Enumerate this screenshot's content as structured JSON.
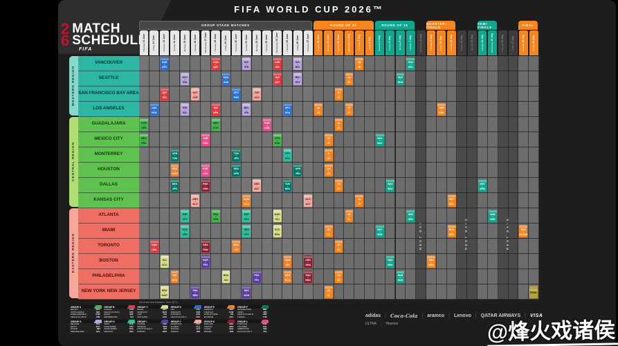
{
  "title": "FIFA WORLD CUP 2026™",
  "logo": {
    "num_top": "2",
    "num_bottom": "6",
    "line1": "MATCH",
    "line2": "SCHEDULE",
    "fifa": "FIFA"
  },
  "note": "All times are Eastern Time (ET)",
  "watermark": "@烽火戏诸侯",
  "colors": {
    "phase_r32": "#f5861f",
    "phase_r16": "#11a78e",
    "phase_qf": "#f5861f",
    "phase_sf": "#11a78e",
    "phase_final_band": "#f5861f",
    "phase_final_block": "#b5a03a",
    "tab_group": "#e6e6e6",
    "tab_rest": "#3d3d3d",
    "col_default": "#757575",
    "col_knockout": "#6c6c6c",
    "col_rest": "#4a4a4a",
    "region_west": "#2eb6a5",
    "region_west_strip": "#86d9cb",
    "region_central": "#5fc14f",
    "region_central_strip": "#aede74",
    "region_east": "#ef6e63",
    "region_east_strip": "#f5a79c",
    "groups": {
      "A": {
        "bg": "#44b24e",
        "fg": "#0d2d10"
      },
      "B": {
        "bg": "#e03a40",
        "fg": "#ffffff"
      },
      "C": {
        "bg": "#d9dd8d",
        "fg": "#32330f"
      },
      "D": {
        "bg": "#2a6fd4",
        "fg": "#ffffff"
      },
      "E": {
        "bg": "#ef8128",
        "fg": "#ffffff"
      },
      "F": {
        "bg": "#007a68",
        "fg": "#ffffff"
      },
      "G": {
        "bg": "#b7a4dc",
        "fg": "#251543"
      },
      "H": {
        "bg": "#2fc0a0",
        "fg": "#062e24"
      },
      "I": {
        "bg": "#5a3da0",
        "fg": "#ffffff"
      },
      "J": {
        "bg": "#f2a8a0",
        "fg": "#471410"
      },
      "K": {
        "bg": "#8c2030",
        "fg": "#ffffff"
      },
      "L": {
        "bg": "#e84a8a",
        "fg": "#ffffff"
      }
    }
  },
  "phases": [
    {
      "key": "group",
      "label": "GROUP STAGE MATCHES",
      "from": 0,
      "to": 16
    },
    {
      "key": "r32",
      "label": "ROUND OF 32",
      "from": 17,
      "to": 22
    },
    {
      "key": "r16",
      "label": "ROUND OF 16",
      "from": 23,
      "to": 26
    },
    {
      "key": "qf",
      "label": "QUARTER-FINALS",
      "from": 28,
      "to": 30
    },
    {
      "key": "sf",
      "label": "SEMI-FINALS",
      "from": 33,
      "to": 34
    },
    {
      "key": "final",
      "label": "FINAL",
      "from": 37,
      "to": 38
    }
  ],
  "rest_labels": [
    {
      "cols": [
        27
      ],
      "label": "REST DAY"
    },
    {
      "cols": [
        31,
        32
      ],
      "label": "REST DAYS"
    },
    {
      "cols": [
        35,
        36
      ],
      "label": "REST DAYS"
    }
  ],
  "dates": [
    {
      "day": "Thursday",
      "date": "11 June"
    },
    {
      "day": "Friday",
      "date": "12 June"
    },
    {
      "day": "Saturday",
      "date": "13 June"
    },
    {
      "day": "Sunday",
      "date": "14 June"
    },
    {
      "day": "Monday",
      "date": "15 June"
    },
    {
      "day": "Tuesday",
      "date": "16 June"
    },
    {
      "day": "Wednesday",
      "date": "17 June"
    },
    {
      "day": "Thursday",
      "date": "18 June"
    },
    {
      "day": "Friday",
      "date": "19 June"
    },
    {
      "day": "Saturday",
      "date": "20 June"
    },
    {
      "day": "Sunday",
      "date": "21 June"
    },
    {
      "day": "Monday",
      "date": "22 June"
    },
    {
      "day": "Tuesday",
      "date": "23 June"
    },
    {
      "day": "Wednesday",
      "date": "24 June"
    },
    {
      "day": "Thursday",
      "date": "25 June"
    },
    {
      "day": "Friday",
      "date": "26 June"
    },
    {
      "day": "Saturday",
      "date": "27 June"
    },
    {
      "day": "Sunday",
      "date": "28 June"
    },
    {
      "day": "Monday",
      "date": "29 June"
    },
    {
      "day": "Tuesday",
      "date": "30 June"
    },
    {
      "day": "Wednesday",
      "date": "1 July"
    },
    {
      "day": "Thursday",
      "date": "2 July"
    },
    {
      "day": "Friday",
      "date": "3 July"
    },
    {
      "day": "Saturday",
      "date": "4 July"
    },
    {
      "day": "Sunday",
      "date": "5 July"
    },
    {
      "day": "Monday",
      "date": "6 July"
    },
    {
      "day": "Tuesday",
      "date": "7 July"
    },
    {
      "day": "Wednesday",
      "date": "8 July"
    },
    {
      "day": "Thursday",
      "date": "9 July"
    },
    {
      "day": "Friday",
      "date": "10 July"
    },
    {
      "day": "Saturday",
      "date": "11 July"
    },
    {
      "day": "Sunday",
      "date": "12 July"
    },
    {
      "day": "Monday",
      "date": "13 July"
    },
    {
      "day": "Tuesday",
      "date": "14 July"
    },
    {
      "day": "Wednesday",
      "date": "15 July"
    },
    {
      "day": "Thursday",
      "date": "16 July"
    },
    {
      "day": "Friday",
      "date": "17 July"
    },
    {
      "day": "Saturday",
      "date": "18 July"
    },
    {
      "day": "Sunday",
      "date": "19 July"
    }
  ],
  "regions": [
    {
      "label": "WESTERN REGION",
      "key": "west",
      "cities": [
        "VANCOUVER",
        "SEATTLE",
        "SAN FRANCISCO BAY AREA",
        "LOS ANGELES"
      ]
    },
    {
      "label": "CENTRAL REGION",
      "key": "central",
      "cities": [
        "GUADALAJARA",
        "MEXICO CITY",
        "MONTERREY",
        "HOUSTON",
        "DALLAS",
        "KANSAS CITY"
      ]
    },
    {
      "label": "EASTERN REGION",
      "key": "east",
      "cities": [
        "ATLANTA",
        "MIAMI",
        "TORONTO",
        "BOSTON",
        "PHILADELPHIA",
        "NEW YORK NEW JERSEY"
      ]
    }
  ],
  "matches": [
    {
      "r": 0,
      "c": 2,
      "g": "D",
      "t1": "AUS",
      "t2": "UPC"
    },
    {
      "r": 0,
      "c": 7,
      "g": "B",
      "t1": "CAN",
      "t2": "QAT"
    },
    {
      "r": 0,
      "c": 10,
      "g": "G",
      "t1": "NZL",
      "t2": "IRN"
    },
    {
      "r": 0,
      "c": 13,
      "g": "B",
      "t1": "CAN",
      "t2": "SUI"
    },
    {
      "r": 0,
      "c": 15,
      "g": "G",
      "t1": "NZL",
      "t2": "BEL"
    },
    {
      "r": 0,
      "c": 21,
      "g": "r32",
      "t1": "1B",
      "t2": "2E"
    },
    {
      "r": 0,
      "c": 26,
      "g": "r16",
      "t1": "W49",
      "t2": "W51"
    },
    {
      "r": 1,
      "c": 4,
      "g": "G",
      "t1": "EGY",
      "t2": "IRN"
    },
    {
      "r": 1,
      "c": 8,
      "g": "D",
      "t1": "USA",
      "t2": "AUS"
    },
    {
      "r": 1,
      "c": 13,
      "g": "B",
      "t1": "SUI",
      "t2": "QAT"
    },
    {
      "r": 1,
      "c": 15,
      "g": "G",
      "t1": "BEL",
      "t2": "EGY"
    },
    {
      "r": 1,
      "c": 20,
      "g": "r32",
      "t1": "1D",
      "t2": "2C"
    },
    {
      "r": 1,
      "c": 25,
      "g": "r16",
      "t1": "W47",
      "t2": "W48"
    },
    {
      "r": 2,
      "c": 2,
      "g": "B",
      "t1": "QAT",
      "t2": "SUI"
    },
    {
      "r": 2,
      "c": 5,
      "g": "J",
      "t1": "AUT",
      "t2": "JOR"
    },
    {
      "r": 2,
      "c": 9,
      "g": "D",
      "t1": "UPC",
      "t2": "PAR"
    },
    {
      "r": 2,
      "c": 11,
      "g": "J",
      "t1": "JOR",
      "t2": "ALG"
    },
    {
      "r": 2,
      "c": 19,
      "g": "r32",
      "t1": "1C",
      "t2": "2F"
    },
    {
      "r": 3,
      "c": 1,
      "g": "D",
      "t1": "USA",
      "t2": "PAR"
    },
    {
      "r": 3,
      "c": 4,
      "g": "G",
      "t1": "IRN",
      "t2": "NZL"
    },
    {
      "r": 3,
      "c": 7,
      "g": "B",
      "t1": "SUI",
      "t2": "UPA"
    },
    {
      "r": 3,
      "c": 10,
      "g": "G",
      "t1": "BEL",
      "t2": "IRN"
    },
    {
      "r": 3,
      "c": 14,
      "g": "D",
      "t1": "UPC",
      "t2": "USA"
    },
    {
      "r": 3,
      "c": 17,
      "g": "r32",
      "t1": "1A",
      "t2": "2B"
    },
    {
      "r": 3,
      "c": 20,
      "g": "r32",
      "t1": "1F",
      "t2": "2E"
    },
    {
      "r": 3,
      "c": 29,
      "g": "qf",
      "t1": "W55",
      "t2": "W56"
    },
    {
      "r": 4,
      "c": 0,
      "g": "A",
      "t1": "KOR",
      "t2": "UPD"
    },
    {
      "r": 4,
      "c": 7,
      "g": "A",
      "t1": "MEX",
      "t2": "KOR"
    },
    {
      "r": 4,
      "c": 12,
      "g": "L",
      "t1": "POR",
      "t2": "UZB"
    },
    {
      "r": 4,
      "c": 19,
      "g": "r32",
      "t1": "1L",
      "t2": "2K"
    },
    {
      "r": 5,
      "c": 0,
      "g": "A",
      "t1": "MEX",
      "t2": "RSA"
    },
    {
      "r": 5,
      "c": 6,
      "g": "L",
      "t1": "UZB",
      "t2": "COL"
    },
    {
      "r": 5,
      "c": 13,
      "g": "A",
      "t1": "UPD",
      "t2": "RSA"
    },
    {
      "r": 5,
      "c": 18,
      "g": "r32",
      "t1": "1E",
      "t2": "2F"
    },
    {
      "r": 5,
      "c": 23,
      "g": "r16",
      "t1": "W41",
      "t2": "W42"
    },
    {
      "r": 6,
      "c": 3,
      "g": "F",
      "t1": "UPB",
      "t2": "TUN"
    },
    {
      "r": 6,
      "c": 9,
      "g": "F",
      "t1": "TUN",
      "t2": "JPN"
    },
    {
      "r": 6,
      "c": 14,
      "g": "H",
      "t1": "CPV",
      "t2": "KSA"
    },
    {
      "r": 6,
      "c": 18,
      "g": "r32",
      "t1": "1I",
      "t2": "2J"
    },
    {
      "r": 7,
      "c": 3,
      "g": "E",
      "t1": "GER",
      "t2": "CUW"
    },
    {
      "r": 7,
      "c": 6,
      "g": "L",
      "t1": "POR",
      "t2": "COL"
    },
    {
      "r": 7,
      "c": 9,
      "g": "F",
      "t1": "NED",
      "t2": "UPB"
    },
    {
      "r": 7,
      "c": 15,
      "g": "F",
      "t1": "UPB",
      "t2": "JPN"
    },
    {
      "r": 7,
      "c": 18,
      "g": "r32",
      "t1": "1H",
      "t2": "2G"
    },
    {
      "r": 8,
      "c": 3,
      "g": "F",
      "t1": "NED",
      "t2": "JPN"
    },
    {
      "r": 8,
      "c": 6,
      "g": "K",
      "t1": "ENG",
      "t2": "CRO"
    },
    {
      "r": 8,
      "c": 11,
      "g": "J",
      "t1": "ARG",
      "t2": "AUT"
    },
    {
      "r": 8,
      "c": 14,
      "g": "F",
      "t1": "TUN",
      "t2": "NED"
    },
    {
      "r": 8,
      "c": 19,
      "g": "r32",
      "t1": "1G",
      "t2": "2H"
    },
    {
      "r": 8,
      "c": 24,
      "g": "r16",
      "t1": "W43",
      "t2": "W44"
    },
    {
      "r": 8,
      "c": 33,
      "g": "sf",
      "t1": "W57",
      "t2": "W58"
    },
    {
      "r": 9,
      "c": 5,
      "g": "J",
      "t1": "ARG",
      "t2": "ALG"
    },
    {
      "r": 9,
      "c": 10,
      "g": "E",
      "t1": "CUW",
      "t2": "ECU"
    },
    {
      "r": 9,
      "c": 16,
      "g": "J",
      "t1": "ALG",
      "t2": "AUT"
    },
    {
      "r": 9,
      "c": 21,
      "g": "r32",
      "t1": "1J",
      "t2": "2I"
    },
    {
      "r": 9,
      "c": 30,
      "g": "qf",
      "t1": "W51",
      "t2": "W52"
    },
    {
      "r": 10,
      "c": 4,
      "g": "H",
      "t1": "ESP",
      "t2": "CPV"
    },
    {
      "r": 10,
      "c": 7,
      "g": "A",
      "t1": "RSA",
      "t2": "UPD"
    },
    {
      "r": 10,
      "c": 10,
      "g": "H",
      "t1": "ESP",
      "t2": "KSA"
    },
    {
      "r": 10,
      "c": 13,
      "g": "C",
      "t1": "MAR",
      "t2": "HAI"
    },
    {
      "r": 10,
      "c": 20,
      "g": "r32",
      "t1": "1K",
      "t2": "2L"
    },
    {
      "r": 10,
      "c": 26,
      "g": "r16",
      "t1": "W50",
      "t2": "W52"
    },
    {
      "r": 10,
      "c": 34,
      "g": "sf",
      "t1": "W59",
      "t2": "W60"
    },
    {
      "r": 11,
      "c": 4,
      "g": "H",
      "t1": "KSA",
      "t2": "URU"
    },
    {
      "r": 11,
      "c": 10,
      "g": "H",
      "t1": "URU",
      "t2": "CPV"
    },
    {
      "r": 11,
      "c": 13,
      "g": "C",
      "t1": "SCO",
      "t2": "BRA"
    },
    {
      "r": 11,
      "c": 18,
      "g": "r32",
      "t1": "2B",
      "t2": "1A"
    },
    {
      "r": 11,
      "c": 23,
      "g": "r16",
      "t1": "W37",
      "t2": "W39"
    },
    {
      "r": 11,
      "c": 30,
      "g": "qf",
      "t1": "W49",
      "t2": "W50"
    },
    {
      "r": 11,
      "c": 37,
      "g": "qf",
      "t1": "3RD",
      "t2": "PLACE"
    },
    {
      "r": 12,
      "c": 1,
      "g": "B",
      "t1": "CAN",
      "t2": "UPA"
    },
    {
      "r": 12,
      "c": 6,
      "g": "K",
      "t1": "GHA",
      "t2": "PAN"
    },
    {
      "r": 12,
      "c": 9,
      "g": "E",
      "t1": "ECU",
      "t2": "CIV"
    },
    {
      "r": 12,
      "c": 19,
      "g": "r32",
      "t1": "2C",
      "t2": "1D"
    },
    {
      "r": 13,
      "c": 2,
      "g": "C",
      "t1": "HAI",
      "t2": "SCO"
    },
    {
      "r": 13,
      "c": 6,
      "g": "I",
      "t1": "NOR",
      "t2": "FP2"
    },
    {
      "r": 13,
      "c": 14,
      "g": "E",
      "t1": "CUW",
      "t2": "CIV"
    },
    {
      "r": 13,
      "c": 16,
      "g": "K",
      "t1": "CRO",
      "t2": "GHA"
    },
    {
      "r": 13,
      "c": 24,
      "g": "r16",
      "t1": "W45",
      "t2": "W46"
    },
    {
      "r": 13,
      "c": 28,
      "g": "qf",
      "t1": "W53",
      "t2": "W54"
    },
    {
      "r": 14,
      "c": 3,
      "g": "E",
      "t1": "CIV",
      "t2": "ECU"
    },
    {
      "r": 14,
      "c": 8,
      "g": "C",
      "t1": "BRA",
      "t2": "HAI"
    },
    {
      "r": 14,
      "c": 11,
      "g": "I",
      "t1": "FRA",
      "t2": "FP2"
    },
    {
      "r": 14,
      "c": 14,
      "g": "E",
      "t1": "GER",
      "t2": "ECU"
    },
    {
      "r": 14,
      "c": 16,
      "g": "K",
      "t1": "PAN",
      "t2": "ENG"
    },
    {
      "r": 14,
      "c": 19,
      "g": "r32",
      "t1": "2G",
      "t2": "1F"
    },
    {
      "r": 14,
      "c": 25,
      "g": "r16",
      "t1": "W38",
      "t2": "W40"
    },
    {
      "r": 15,
      "c": 2,
      "g": "C",
      "t1": "BRA",
      "t2": "MAR"
    },
    {
      "r": 15,
      "c": 5,
      "g": "I",
      "t1": "FRA",
      "t2": "SEN"
    },
    {
      "r": 15,
      "c": 10,
      "g": "I",
      "t1": "SEN",
      "t2": "NOR"
    },
    {
      "r": 15,
      "c": 18,
      "g": "r32",
      "t1": "2K",
      "t2": "1L"
    },
    {
      "r": 15,
      "c": 38,
      "g": "final",
      "t1": "FINAL",
      "t2": ""
    }
  ],
  "groups": [
    {
      "name": "GROUP A",
      "key": "A",
      "teams": [
        [
          "MEXICO",
          "MEX"
        ],
        [
          "SOUTH AFRICA",
          "RSA"
        ],
        [
          "KOREA REPUBLIC",
          "KOR"
        ],
        [
          "UEFA PLAY-OFF D",
          "UPD"
        ]
      ]
    },
    {
      "name": "GROUP B",
      "key": "B",
      "teams": [
        [
          "CANADA",
          "CAN"
        ],
        [
          "UEFA PLAY-OFF A",
          "UPA"
        ],
        [
          "QATAR",
          "QAT"
        ],
        [
          "SWITZERLAND",
          "SUI"
        ]
      ]
    },
    {
      "name": "GROUP C",
      "key": "C",
      "teams": [
        [
          "BRAZIL",
          "BRA"
        ],
        [
          "MOROCCO",
          "MAR"
        ],
        [
          "HAITI",
          "HAI"
        ],
        [
          "SCOTLAND",
          "SCO"
        ]
      ]
    },
    {
      "name": "GROUP D",
      "key": "D",
      "teams": [
        [
          "USA",
          "USA"
        ],
        [
          "PARAGUAY",
          "PAR"
        ],
        [
          "AUSTRALIA",
          "AUS"
        ],
        [
          "UEFA PLAY-OFF C",
          "UPC"
        ]
      ]
    },
    {
      "name": "GROUP E",
      "key": "E",
      "teams": [
        [
          "GERMANY",
          "GER"
        ],
        [
          "CURACAO",
          "CUW"
        ],
        [
          "COTE D'IVOIRE",
          "CIV"
        ],
        [
          "ECUADOR",
          "ECU"
        ]
      ]
    },
    {
      "name": "GROUP F",
      "key": "F",
      "teams": [
        [
          "NETHERLANDS",
          "NED"
        ],
        [
          "JAPAN",
          "JPN"
        ],
        [
          "UEFA PLAY-OFF B",
          "UPB"
        ],
        [
          "TUNISIA",
          "TUN"
        ]
      ]
    },
    {
      "name": "GROUP G",
      "key": "G",
      "teams": [
        [
          "BELGIUM",
          "BEL"
        ],
        [
          "EGYPT",
          "EGY"
        ],
        [
          "IR IRAN",
          "IRN"
        ],
        [
          "NEW ZEALAND",
          "NZL"
        ]
      ]
    },
    {
      "name": "GROUP H",
      "key": "H",
      "teams": [
        [
          "SPAIN",
          "ESP"
        ],
        [
          "CAPE VERDE",
          "CPV"
        ],
        [
          "SAUDI ARABIA",
          "KSA"
        ],
        [
          "URUGUAY",
          "URU"
        ]
      ]
    },
    {
      "name": "GROUP I",
      "key": "I",
      "teams": [
        [
          "FRANCE",
          "FRA"
        ],
        [
          "SENEGAL",
          "SEN"
        ],
        [
          "FIFA PLAY-OFF 2",
          "FP2"
        ],
        [
          "NORWAY",
          "NOR"
        ]
      ]
    },
    {
      "name": "GROUP J",
      "key": "J",
      "teams": [
        [
          "ARGENTINA",
          "ARG"
        ],
        [
          "ALGERIA",
          "ALG"
        ],
        [
          "AUSTRIA",
          "AUT"
        ],
        [
          "JORDAN",
          "JOR"
        ]
      ]
    },
    {
      "name": "GROUP K",
      "key": "K",
      "teams": [
        [
          "ENGLAND",
          "ENG"
        ],
        [
          "CROATIA",
          "CRO"
        ],
        [
          "GHANA",
          "GHA"
        ],
        [
          "PANAMA",
          "PAN"
        ]
      ]
    },
    {
      "name": "GROUP L",
      "key": "L",
      "teams": [
        [
          "PORTUGAL",
          "POR"
        ],
        [
          "COLOMBIA",
          "COL"
        ],
        [
          "UZBEKISTAN",
          "UZB"
        ],
        [
          "FIFA PLAY-OFF 1",
          "FP1"
        ]
      ]
    }
  ],
  "sponsors": {
    "row1": [
      "adidas",
      "Coca-Cola",
      "aramco",
      "Lenovo",
      "QATAR AIRWAYS",
      "VISA"
    ],
    "row2": [
      "ULTRA",
      "Hisense"
    ]
  }
}
